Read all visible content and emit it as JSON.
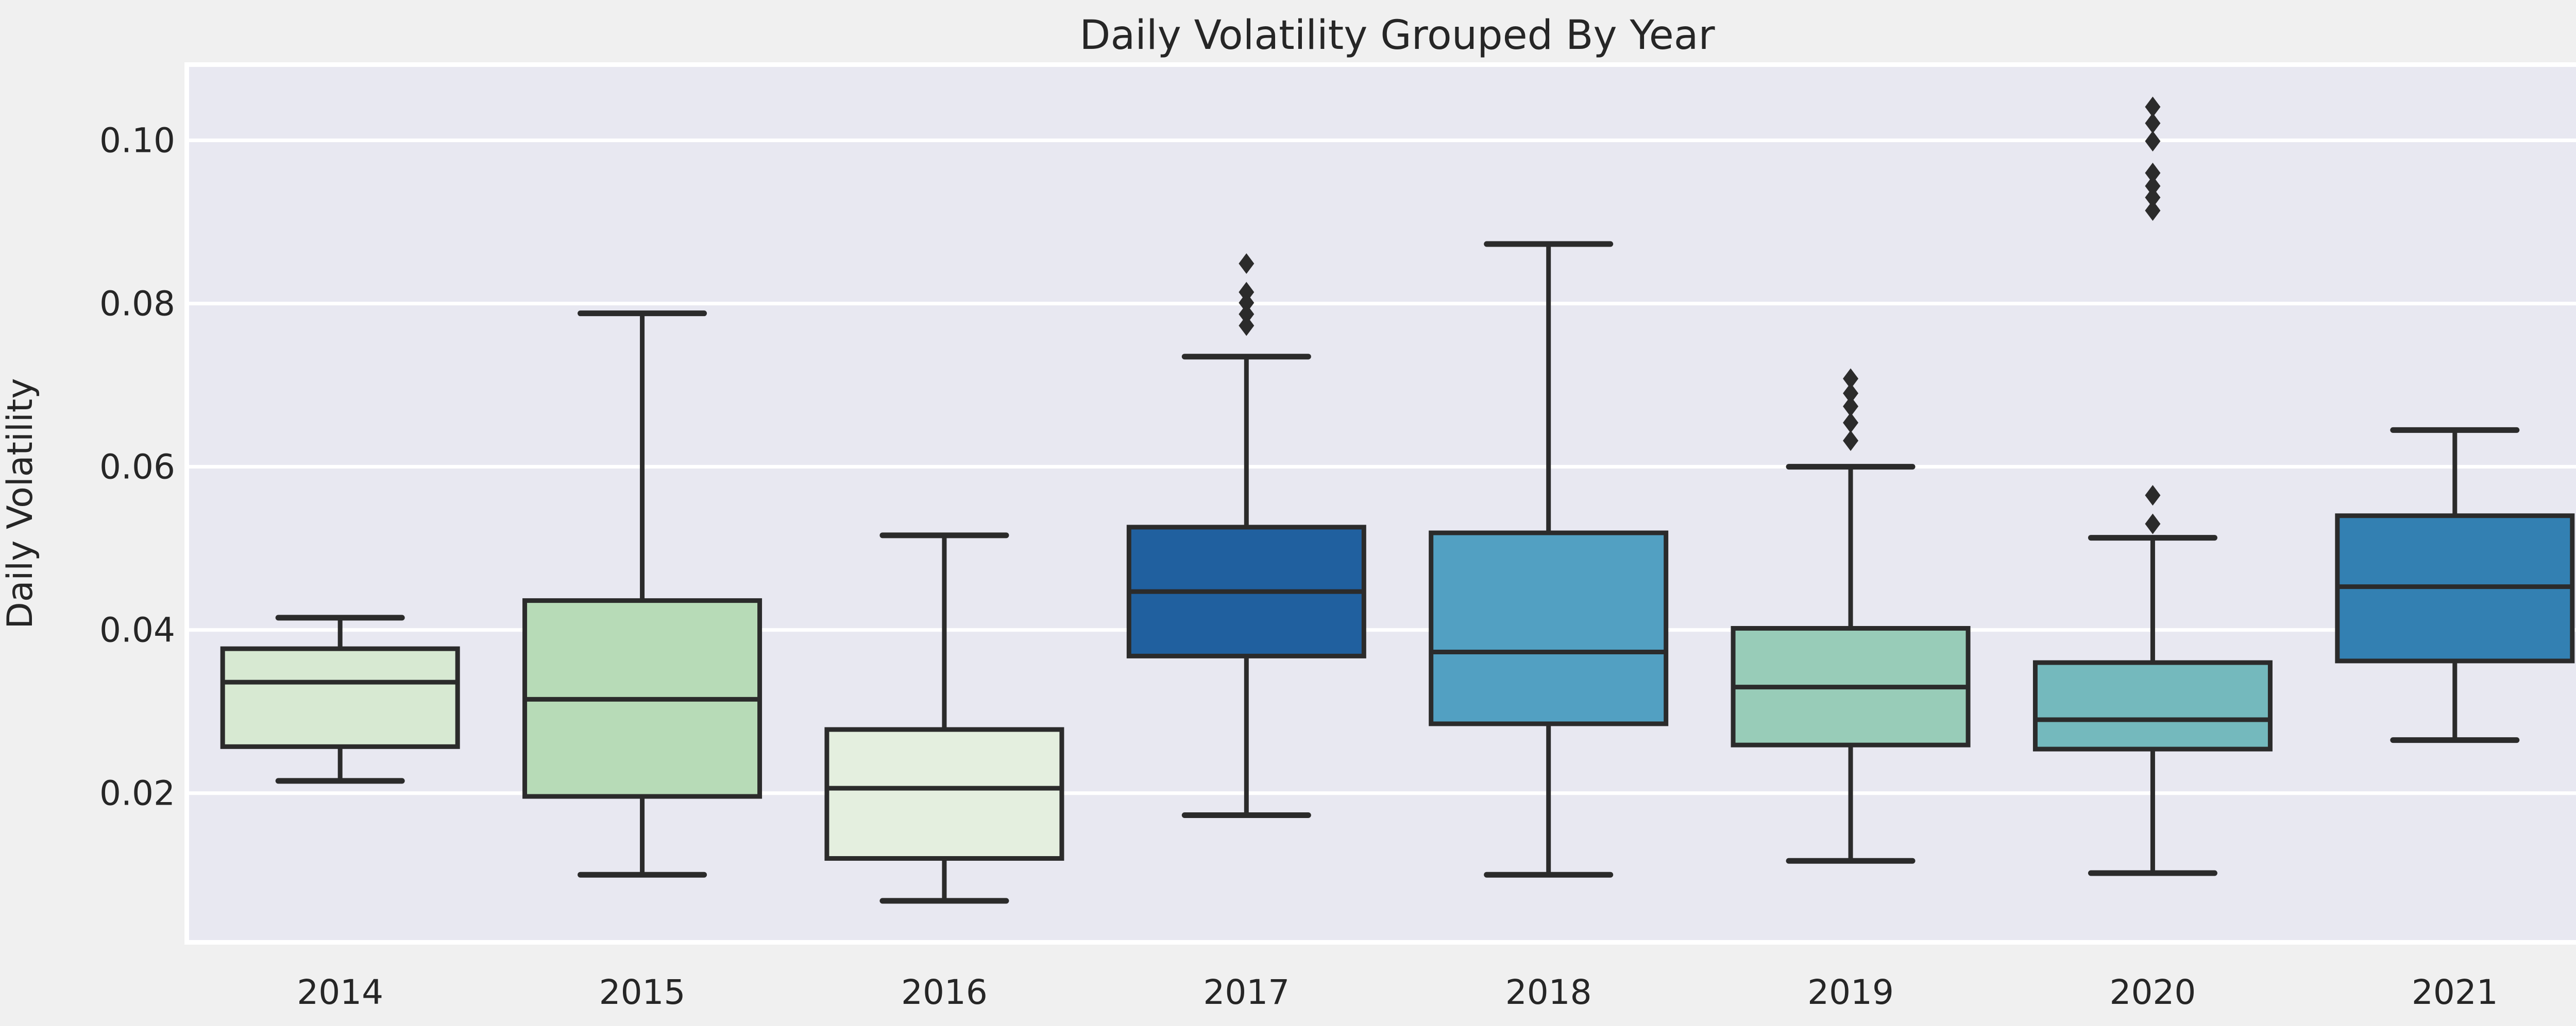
{
  "title": "Daily Volatility Grouped By Year",
  "y_axis": {
    "label": "Daily Volatility",
    "tick_labels": [
      "0.10",
      "0.08",
      "0.06",
      "0.04",
      "0.02"
    ],
    "tick_values": [
      0.1,
      0.08,
      0.06,
      0.04,
      0.02
    ]
  },
  "x_axis": {
    "tick_labels": [
      "2014",
      "2015",
      "2016",
      "2017",
      "2018",
      "2019",
      "2020",
      "2021"
    ]
  },
  "colors": {
    "figure_background": "#f0f0f0",
    "axes_background": "#e8e8f1",
    "axes_frame": "#ffffff",
    "gridline": "#ffffff",
    "line": "#2b2b2b",
    "text": "#262626"
  },
  "chart_data": {
    "type": "boxplot",
    "title": "Daily Volatility Grouped By Year",
    "xlabel": "",
    "ylabel": "Daily Volatility",
    "categories": [
      "2014",
      "2015",
      "2016",
      "2017",
      "2018",
      "2019",
      "2020",
      "2021"
    ],
    "ylim": [
      0.002,
      0.109
    ],
    "grid": true,
    "orientation": "vertical",
    "series": [
      {
        "category": "2014",
        "whisker_low": 0.0215,
        "q1": 0.0257,
        "median": 0.0336,
        "q3": 0.0377,
        "whisker_high": 0.0415,
        "outliers": [],
        "color": "#d7e9d2"
      },
      {
        "category": "2015",
        "whisker_low": 0.01,
        "q1": 0.0196,
        "median": 0.0315,
        "q3": 0.0436,
        "whisker_high": 0.0788,
        "outliers": [],
        "color": "#b7dbb7"
      },
      {
        "category": "2016",
        "whisker_low": 0.0068,
        "q1": 0.012,
        "median": 0.0206,
        "q3": 0.0278,
        "whisker_high": 0.0516,
        "outliers": [],
        "color": "#e4efdf"
      },
      {
        "category": "2017",
        "whisker_low": 0.0173,
        "q1": 0.0368,
        "median": 0.0447,
        "q3": 0.0526,
        "whisker_high": 0.0735,
        "outliers": [
          0.0773,
          0.0787,
          0.0801,
          0.0814,
          0.0849
        ],
        "color": "#20609f"
      },
      {
        "category": "2018",
        "whisker_low": 0.01,
        "q1": 0.0285,
        "median": 0.0373,
        "q3": 0.0519,
        "whisker_high": 0.0873,
        "outliers": [],
        "color": "#52a0c2"
      },
      {
        "category": "2019",
        "whisker_low": 0.0117,
        "q1": 0.0259,
        "median": 0.033,
        "q3": 0.0402,
        "whisker_high": 0.06,
        "outliers": [
          0.0632,
          0.0654,
          0.0674,
          0.069,
          0.0708
        ],
        "color": "#98ccb8"
      },
      {
        "category": "2020",
        "whisker_low": 0.0102,
        "q1": 0.0254,
        "median": 0.029,
        "q3": 0.036,
        "whisker_high": 0.0513,
        "outliers": [
          0.053,
          0.0565,
          0.0914,
          0.093,
          0.0944,
          0.096,
          0.0999,
          0.1021,
          0.1041
        ],
        "color": "#74b9bd"
      },
      {
        "category": "2021",
        "whisker_low": 0.0265,
        "q1": 0.0362,
        "median": 0.0453,
        "q3": 0.054,
        "whisker_high": 0.0645,
        "outliers": [],
        "color": "#3380b2"
      }
    ]
  }
}
